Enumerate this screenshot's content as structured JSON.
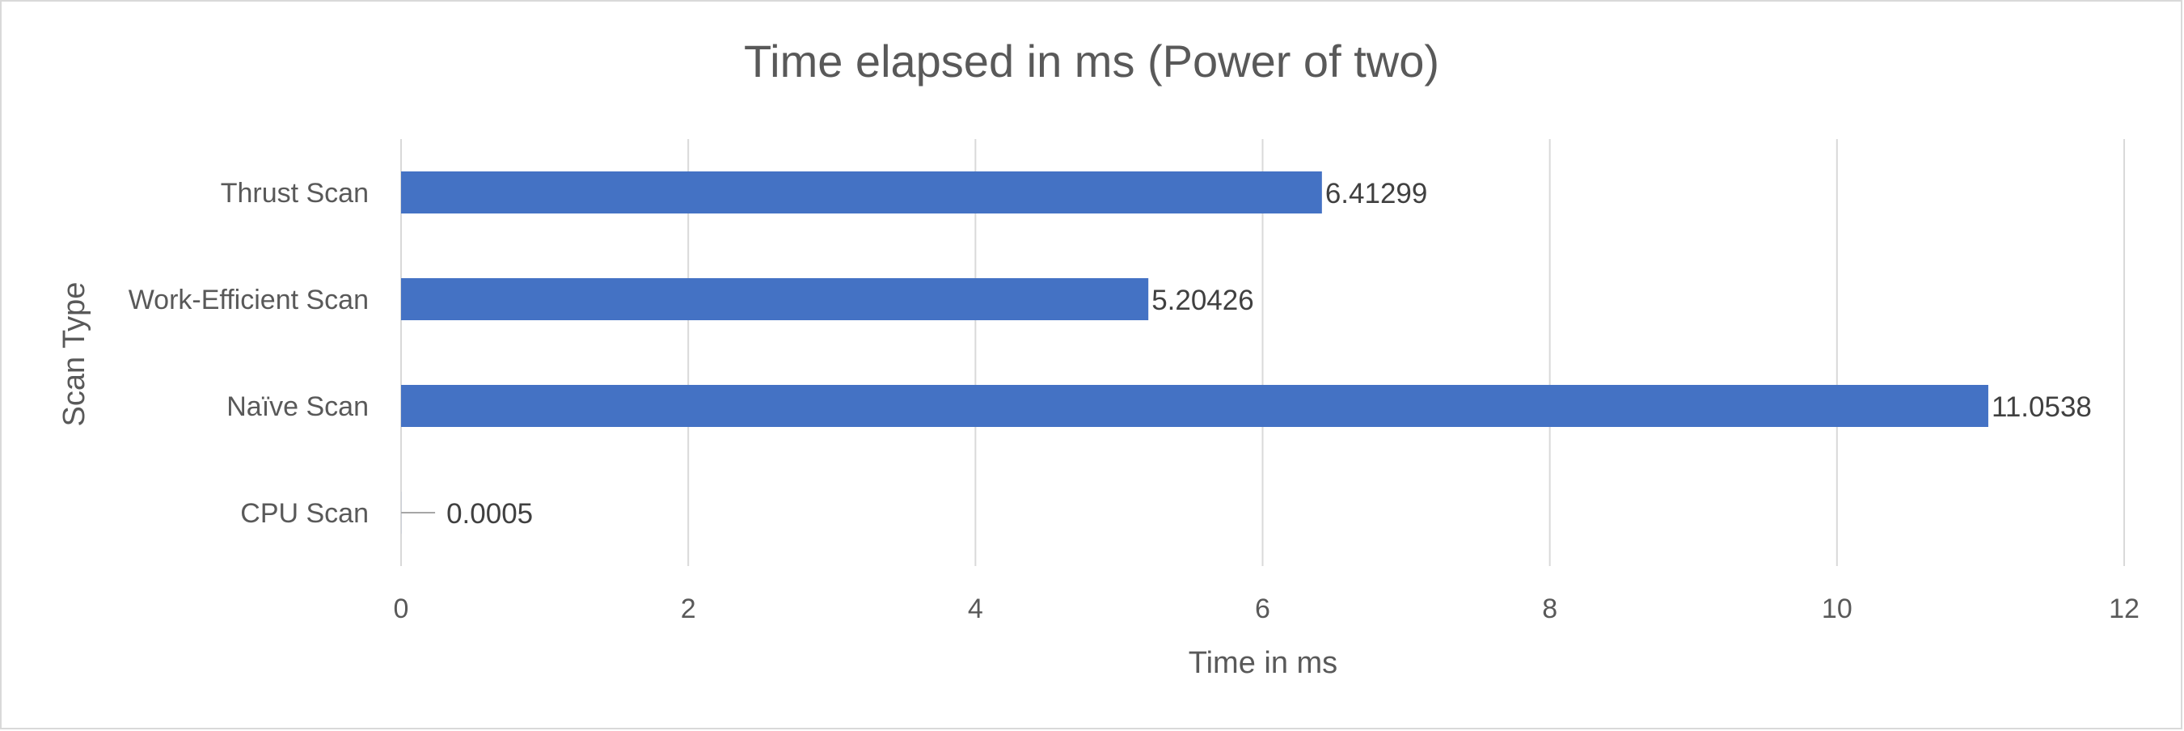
{
  "chart_data": {
    "type": "bar",
    "orientation": "horizontal",
    "title": "Time elapsed in ms (Power of two)",
    "xlabel": "Time in ms",
    "ylabel": "Scan Type",
    "categories": [
      "Thrust Scan",
      "Work-Efficient Scan",
      "Naïve Scan",
      "CPU Scan"
    ],
    "values": [
      6.41299,
      5.20426,
      11.0538,
      0.0005
    ],
    "data_labels": [
      "6.41299",
      "5.20426",
      "11.0538",
      "0.0005"
    ],
    "xlim": [
      0,
      12
    ],
    "xticks": [
      0,
      2,
      4,
      6,
      8,
      10,
      12
    ],
    "grid": true,
    "legend": "none",
    "colors": {
      "bar": "#4472c4",
      "grid": "#d9d9d9",
      "text": "#595959",
      "label": "#404040",
      "leader": "#a6a6a6"
    }
  }
}
